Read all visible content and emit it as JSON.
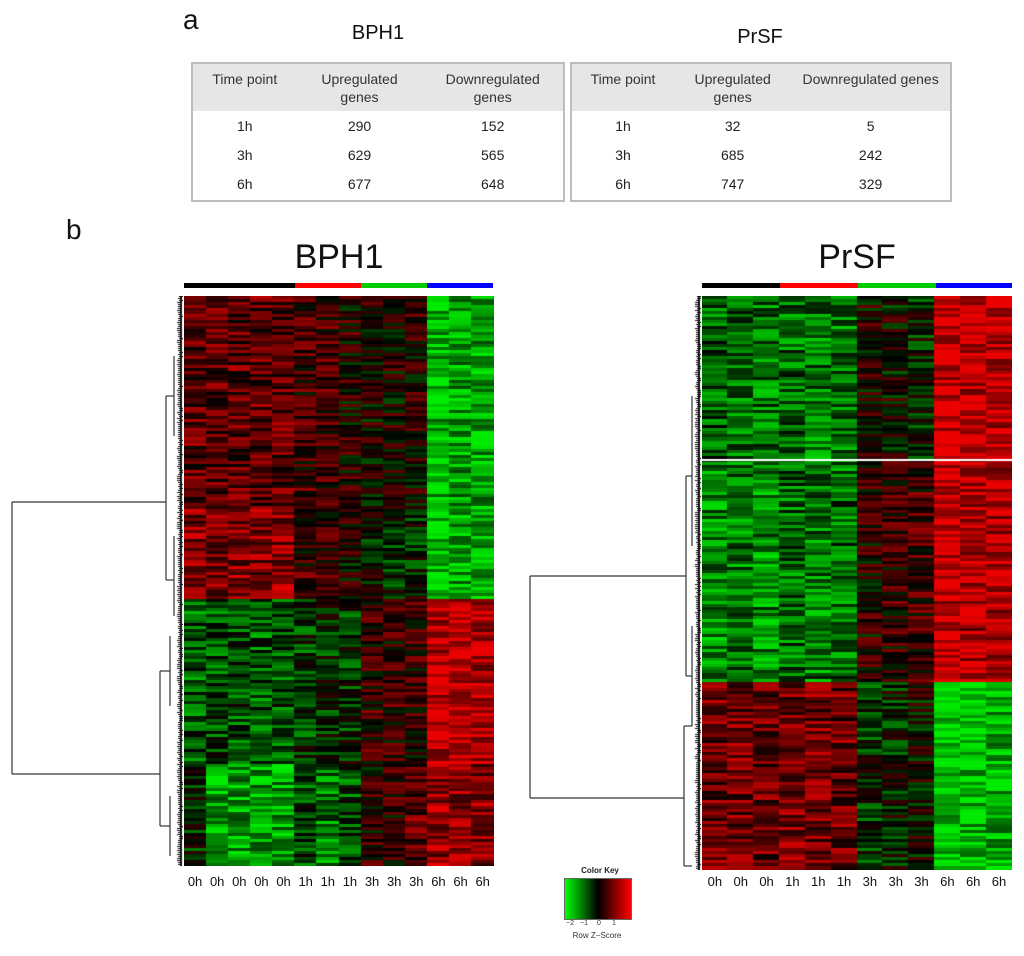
{
  "panel_a_letter": "a",
  "panel_b_letter": "b",
  "tables": [
    {
      "title": "BPH1",
      "headers": [
        "Time point",
        "Upregulated genes",
        "Downregulated genes"
      ],
      "rows": [
        [
          "1h",
          "290",
          "152"
        ],
        [
          "3h",
          "629",
          "565"
        ],
        [
          "6h",
          "677",
          "648"
        ]
      ]
    },
    {
      "title": "PrSF",
      "headers": [
        "Time point",
        "Upregulated genes",
        "Downregulated genes"
      ],
      "rows": [
        [
          "1h",
          "32",
          "5"
        ],
        [
          "3h",
          "685",
          "242"
        ],
        [
          "6h",
          "747",
          "329"
        ]
      ]
    }
  ],
  "heatmaps": [
    {
      "title": "BPH1",
      "column_labels": [
        "0h",
        "0h",
        "0h",
        "0h",
        "0h",
        "1h",
        "1h",
        "1h",
        "3h",
        "3h",
        "3h",
        "6h",
        "6h",
        "6h"
      ],
      "group_colors": [
        "#000000",
        "#ff0000",
        "#00cc00",
        "#0000ff"
      ]
    },
    {
      "title": "PrSF",
      "column_labels": [
        "0h",
        "0h",
        "0h",
        "1h",
        "1h",
        "1h",
        "3h",
        "3h",
        "3h",
        "6h",
        "6h",
        "6h"
      ],
      "group_colors": [
        "#000000",
        "#ff0000",
        "#00cc00",
        "#0000ff"
      ]
    }
  ],
  "color_key": {
    "title": "Color Key",
    "ticks": [
      "−2",
      "−1",
      "0",
      "1"
    ],
    "label": "Row Z−Score",
    "low_color": "#00ff00",
    "mid_color": "#000000",
    "high_color": "#ff0000"
  }
}
